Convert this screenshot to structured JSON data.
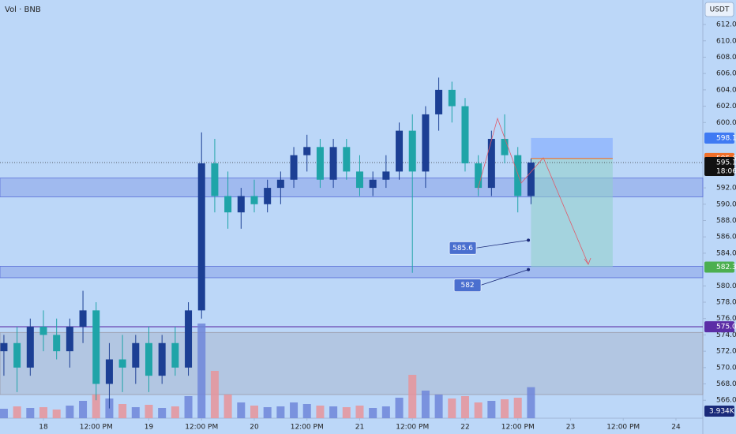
{
  "chart_data": {
    "type": "candlestick",
    "title": "Vol · BNB",
    "currency": "USDT",
    "x": [
      17.625,
      17.75,
      17.875,
      18.0,
      18.125,
      18.25,
      18.375,
      18.5,
      18.625,
      18.75,
      18.875,
      19.0,
      19.125,
      19.25,
      19.375,
      19.5,
      19.625,
      19.75,
      19.875,
      20.0,
      20.125,
      20.25,
      20.375,
      20.5,
      20.625,
      20.75,
      20.875,
      21.0,
      21.125,
      21.25,
      21.375,
      21.5,
      21.625,
      21.75,
      21.875,
      22.0,
      22.125,
      22.25,
      22.375,
      22.5,
      22.625
    ],
    "open": [
      572,
      573,
      570,
      575,
      574,
      572,
      575,
      577,
      568,
      571,
      570,
      573,
      569,
      573,
      570,
      577,
      595,
      591,
      589,
      591,
      590,
      592,
      593,
      596,
      597,
      593,
      597,
      594,
      592,
      593,
      594,
      599,
      594,
      601,
      604,
      602,
      595,
      592,
      598,
      596,
      591
    ],
    "high": [
      574,
      575,
      576,
      577,
      576,
      576,
      579.4,
      578,
      573,
      574,
      574,
      575,
      574,
      575,
      578,
      598.8,
      598,
      594,
      592,
      593,
      593,
      594,
      597,
      598.5,
      598,
      598,
      598,
      596,
      594,
      596,
      600,
      601,
      602,
      605.5,
      605,
      603,
      596,
      599,
      601,
      597,
      595.6
    ],
    "low": [
      569,
      567,
      569,
      572,
      571,
      570,
      573,
      566,
      565,
      567,
      568,
      567,
      568,
      569,
      569,
      576,
      589,
      587,
      587,
      589,
      589,
      590,
      592,
      594,
      592,
      592,
      593,
      591,
      591,
      592,
      593,
      581.6,
      592,
      599,
      600,
      594,
      591,
      591,
      595,
      589,
      590
    ],
    "close": [
      573,
      570,
      575,
      574,
      572,
      575,
      577,
      568,
      571,
      570,
      573,
      569,
      573,
      570,
      577,
      595,
      591,
      589,
      591,
      590,
      592,
      593,
      596,
      597,
      593,
      597,
      594,
      592,
      593,
      594,
      599,
      594,
      601,
      604,
      602,
      595,
      592,
      598,
      596,
      591,
      595.1
    ],
    "volume": [
      1.2,
      1.5,
      1.3,
      1.4,
      1.1,
      1.6,
      2.2,
      3.0,
      2.5,
      1.8,
      1.4,
      1.7,
      1.3,
      1.5,
      2.8,
      12.0,
      6.0,
      3.0,
      2.0,
      1.6,
      1.4,
      1.5,
      2.0,
      1.8,
      1.6,
      1.5,
      1.4,
      1.6,
      1.3,
      1.5,
      2.6,
      5.5,
      3.5,
      3.0,
      2.5,
      2.8,
      2.0,
      2.2,
      2.4,
      2.6,
      3.934
    ],
    "volume_label": {
      "value": 3.934,
      "label": "3.934K",
      "color": "#1a2a7a"
    },
    "up_color": "#1c3f94",
    "down_color": "#1fa4a8",
    "volume_up_color": "#6f86d9",
    "volume_down_color": "#e8949a",
    "xlim": [
      17.588,
      24.255
    ],
    "xticks": [
      18,
      {
        "value": 18.5,
        "label": "12:00 PM"
      },
      19,
      {
        "value": 19.5,
        "label": "12:00 PM"
      },
      20,
      {
        "value": 20.5,
        "label": "12:00 PM"
      },
      21,
      {
        "value": 21.5,
        "label": "12:00 PM"
      },
      22,
      {
        "value": 22.5,
        "label": "12:00 PM"
      },
      23,
      {
        "value": 23.5,
        "label": "12:00 PM"
      },
      24
    ],
    "ylim": [
      563.8,
      615
    ],
    "yticks": [
      {
        "value": 566,
        "label": "566.0"
      },
      {
        "value": 568,
        "label": "568.0"
      },
      {
        "value": 570,
        "label": "570.0"
      },
      {
        "value": 572,
        "label": "572.0"
      },
      {
        "value": 574,
        "label": "574.0"
      },
      {
        "value": 576,
        "label": "576.0"
      },
      {
        "value": 578,
        "label": "578.0"
      },
      {
        "value": 580,
        "label": "580.0"
      },
      {
        "value": 584,
        "label": "584.0"
      },
      {
        "value": 586,
        "label": "586.0"
      },
      {
        "value": 588,
        "label": "588.0"
      },
      {
        "value": 590,
        "label": "590.0"
      },
      {
        "value": 592,
        "label": "592.0"
      },
      {
        "value": 600,
        "label": "600.0"
      },
      {
        "value": 602,
        "label": "602.0"
      },
      {
        "value": 604,
        "label": "604.0"
      },
      {
        "value": 606,
        "label": "606.0"
      },
      {
        "value": 608,
        "label": "608.0"
      },
      {
        "value": 610,
        "label": "610.0"
      },
      {
        "value": 612,
        "label": "612.0"
      }
    ],
    "zones": [
      {
        "from": 590.9,
        "to": 593.2,
        "color": "#5a6fd8"
      },
      {
        "from": 581.0,
        "to": 582.4,
        "color": "#5a6fd8"
      },
      {
        "from": 566.7,
        "to": 574.3,
        "color": "#9a9aa8"
      }
    ],
    "level": {
      "value": 575,
      "label": "575.0",
      "color": "#5b2ea6"
    },
    "last_price": {
      "value": 595.1,
      "countdown": "18:06"
    },
    "price_labels": [
      {
        "value": 598.1,
        "color": "#3f7af3"
      },
      {
        "value": 595.6,
        "color": "#f0702a"
      },
      {
        "value": 582.3,
        "color": "#4caf50"
      }
    ],
    "position": {
      "x": [
        22.625,
        23.4
      ],
      "stop": 598.1,
      "entry": 595.6,
      "target": 582.3,
      "stop_color": "#7fa8ff",
      "target_color": "#8fd0c8",
      "entry_color": "#f0702a"
    },
    "callouts": [
      {
        "value": 585.6,
        "x": 22.6
      },
      {
        "value": 582.0,
        "x": 22.6
      }
    ]
  }
}
